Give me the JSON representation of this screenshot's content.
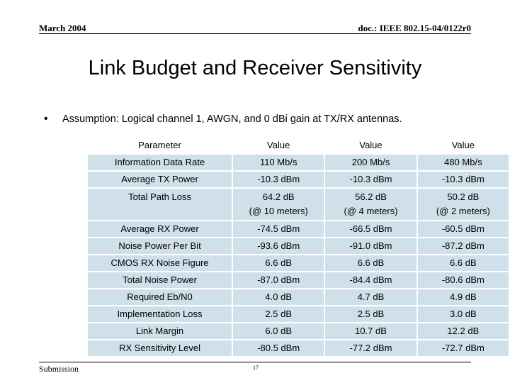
{
  "header": {
    "date": "March 2004",
    "doc": "doc.: IEEE 802.15-04/0122r0"
  },
  "title": "Link Budget and Receiver Sensitivity",
  "bullet": "Assumption: Logical channel 1, AWGN, and 0 dBi gain at TX/RX antennas.",
  "table": {
    "headers": [
      "Parameter",
      "Value",
      "Value",
      "Value"
    ],
    "rows": [
      {
        "label": "Information Data Rate",
        "values": [
          "110 Mb/s",
          "200 Mb/s",
          "480 Mb/s"
        ]
      },
      {
        "label": "Average TX Power",
        "values": [
          "-10.3 dBm",
          "-10.3 dBm",
          "-10.3 dBm"
        ]
      },
      {
        "label": "Total Path Loss",
        "values": [
          "64.2 dB",
          "56.2 dB",
          "50.2 dB"
        ],
        "sub": [
          "(@ 10 meters)",
          "(@ 4 meters)",
          "(@ 2 meters)"
        ]
      },
      {
        "label": "Average RX Power",
        "values": [
          "-74.5 dBm",
          "-66.5 dBm",
          "-60.5 dBm"
        ]
      },
      {
        "label": "Noise Power Per Bit",
        "values": [
          "-93.6 dBm",
          "-91.0 dBm",
          "-87.2 dBm"
        ]
      },
      {
        "label": "CMOS RX Noise Figure",
        "values": [
          "6.6 dB",
          "6.6 dB",
          "6.6 dB"
        ]
      },
      {
        "label": "Total Noise Power",
        "values": [
          "-87.0 dBm",
          "-84.4 dBm",
          "-80.6 dBm"
        ]
      },
      {
        "label": "Required Eb/N0",
        "values": [
          "4.0 dB",
          "4.7 dB",
          "4.9 dB"
        ]
      },
      {
        "label": "Implementation Loss",
        "values": [
          "2.5 dB",
          "2.5 dB",
          "3.0 dB"
        ]
      },
      {
        "label": "Link Margin",
        "values": [
          "6.0 dB",
          "10.7 dB",
          "12.2 dB"
        ]
      },
      {
        "label": "RX Sensitivity Level",
        "values": [
          "-80.5 dBm",
          "-77.2 dBm",
          "-72.7 dBm"
        ]
      }
    ]
  },
  "footer": {
    "left": "Submission",
    "page": "17"
  }
}
